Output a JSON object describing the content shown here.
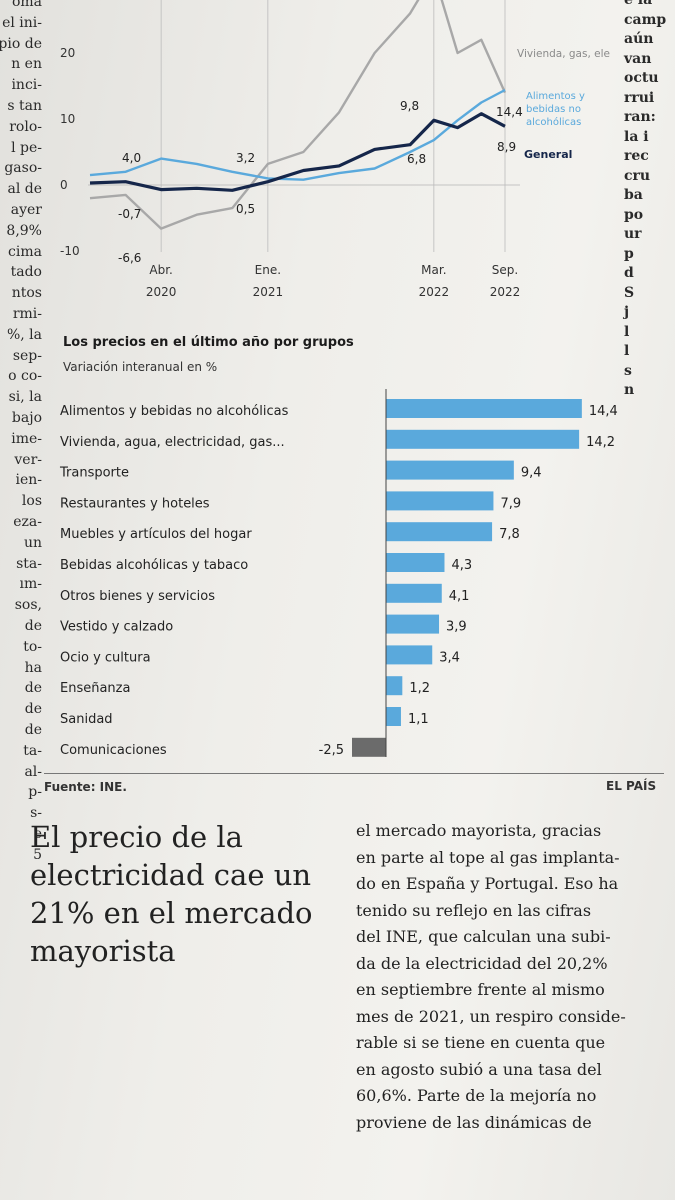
{
  "left_column_fragments": [
    "oma",
    "el ini-",
    "pio de",
    "n en",
    "inci-",
    "s tan",
    "rolo-",
    "l pe-",
    "gaso-",
    "al de",
    "ayer",
    "8,9%",
    "cima",
    "tado",
    "ntos",
    "rmi-",
    "%, la",
    "sep-",
    "o co-",
    "si, la",
    "bajo",
    "ime-",
    "ver-",
    "ien-",
    "los",
    "eza-",
    "un",
    "sta-",
    "ım-",
    "sos,",
    "de",
    "to-",
    "ha",
    "de",
    "de",
    "de",
    "ta-",
    "al-",
    "p-",
    "s-",
    "e",
    "5"
  ],
  "right_column_fragments": [
    "e la",
    "camp",
    "aún",
    "van",
    "octu",
    "rrui",
    "ran:",
    "la i",
    "rec",
    "cru",
    "ba",
    "po",
    "ur",
    "p",
    "d",
    "S",
    "j",
    "l",
    "l",
    "s",
    "n"
  ],
  "line_chart": {
    "y_ticks": [
      "20",
      "10",
      "0",
      "-10"
    ],
    "x_ticks": [
      {
        "month": "Abr.",
        "year": "2020"
      },
      {
        "month": "Ene.",
        "year": "2021"
      },
      {
        "month": "Mar.",
        "year": "2022"
      },
      {
        "month": "Sep.",
        "year": "2022"
      }
    ],
    "annotations": [
      "4,0",
      "-0,7",
      "-6,6",
      "3,2",
      "0,5",
      "9,8",
      "6,8",
      "14,4",
      "8,9"
    ],
    "legend": {
      "vivienda": "Vivienda, gas, electricidad...",
      "alimentos_line1": "Alimentos y",
      "alimentos_line2": "bebidas no",
      "alimentos_line3": "alcohólicas",
      "general": "General"
    }
  },
  "chart_data": [
    {
      "type": "line",
      "x": [
        "2019-10",
        "2020-01",
        "2020-04",
        "2020-07",
        "2020-10",
        "2021-01",
        "2021-04",
        "2021-07",
        "2021-10",
        "2022-01",
        "2022-03",
        "2022-05",
        "2022-07",
        "2022-09"
      ],
      "series": [
        {
          "name": "Vivienda, gas, electricidad...",
          "values": [
            -2.0,
            -1.5,
            -6.6,
            -4.5,
            -3.5,
            3.2,
            5.0,
            11.0,
            20.0,
            26.0,
            32.0,
            20.0,
            22.0,
            14.0
          ]
        },
        {
          "name": "Alimentos y bebidas no alcohólicas",
          "values": [
            1.5,
            2.0,
            4.0,
            3.2,
            2.0,
            1.0,
            0.8,
            1.8,
            2.5,
            5.0,
            6.8,
            9.8,
            12.5,
            14.4
          ]
        },
        {
          "name": "General",
          "values": [
            0.3,
            0.5,
            -0.7,
            -0.5,
            -0.8,
            0.5,
            2.2,
            2.9,
            5.4,
            6.1,
            9.8,
            8.7,
            10.8,
            8.9
          ]
        }
      ],
      "yticks": [
        -10,
        0,
        10,
        20
      ],
      "xticks": [
        "Abr. 2020",
        "Ene. 2021",
        "Mar. 2022",
        "Sep. 2022"
      ],
      "colors": {
        "Vivienda, gas, electricidad...": "#a8a8a8",
        "Alimentos y bebidas no alcohólicas": "#5aa9dc",
        "General": "#15264a"
      }
    },
    {
      "type": "bar",
      "orientation": "horizontal",
      "title": "Los precios en el último año por grupos",
      "subtitle": "Variación interanual en %",
      "categories": [
        "Alimentos y bebidas no alcohólicas",
        "Vivienda, agua, electricidad, gas...",
        "Transporte",
        "Restaurantes y hoteles",
        "Muebles y artículos del hogar",
        "Bebidas alcohólicas y tabaco",
        "Otros bienes y servicios",
        "Vestido y calzado",
        "Ocio y cultura",
        "Enseñanza",
        "Sanidad",
        "Comunicaciones"
      ],
      "values": [
        14.4,
        14.2,
        9.4,
        7.9,
        7.8,
        4.3,
        4.1,
        3.9,
        3.4,
        1.2,
        1.1,
        -2.5
      ],
      "value_labels": [
        "14,4",
        "14,2",
        "9,4",
        "7,9",
        "7,8",
        "4,3",
        "4,1",
        "3,9",
        "3,4",
        "1,2",
        "1,1",
        "-2,5"
      ],
      "colors": {
        "positive": "#5aa9dc",
        "negative": "#6b6b6b"
      }
    }
  ],
  "source": "Fuente: INE.",
  "brand": "EL PAÍS",
  "headline": "El precio de la electricidad cae un 21% en el mercado mayorista",
  "body_lines": [
    "el mercado mayorista, gracias",
    "en parte al tope al gas implanta-",
    "do en España y Portugal. Eso ha",
    "tenido su reflejo en las cifras",
    "del INE, que calculan una subi-",
    "da de la electricidad del 20,2%",
    "en septiembre frente al mismo",
    "mes de 2021, un respiro conside-",
    "rable si se tiene en cuenta que",
    "en agosto subió a una tasa del",
    "60,6%. Parte de la mejoría no",
    "proviene de las dinámicas de"
  ]
}
